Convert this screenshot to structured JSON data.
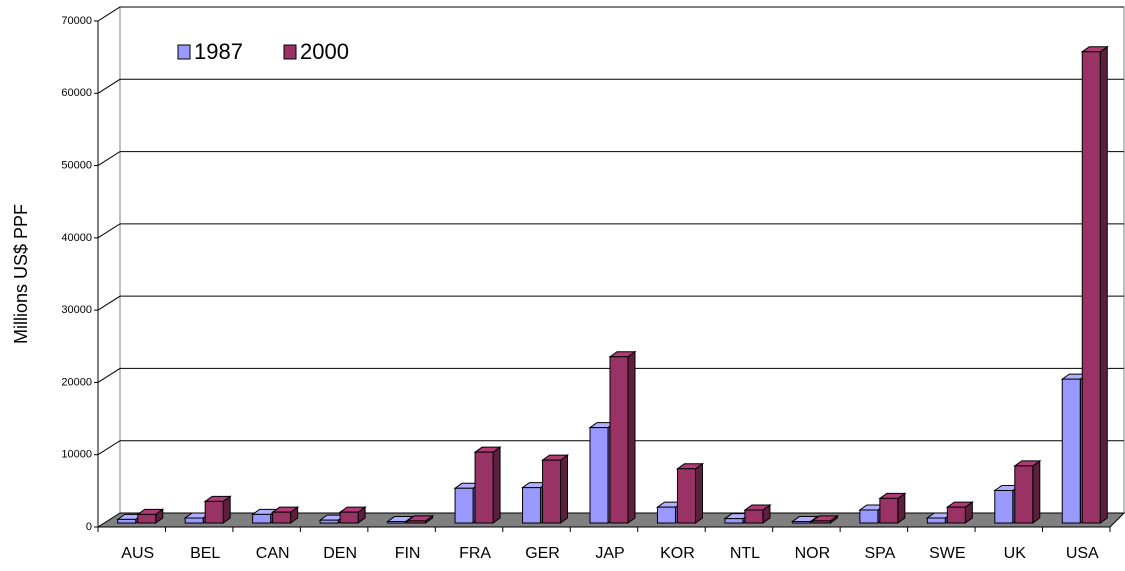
{
  "chart_data": {
    "type": "bar3d",
    "y_label": "Millions US$ PPF",
    "categories": [
      "AUS",
      "BEL",
      "CAN",
      "DEN",
      "FIN",
      "FRA",
      "GER",
      "JAP",
      "KOR",
      "NTL",
      "NOR",
      "SPA",
      "SWE",
      "UK",
      "USA"
    ],
    "series": [
      {
        "name": "1987",
        "color": "#9999ff",
        "values": [
          500,
          700,
          1200,
          400,
          200,
          4800,
          4900,
          13200,
          2200,
          600,
          200,
          1800,
          700,
          4500,
          19900
        ]
      },
      {
        "name": "2000",
        "color": "#993366",
        "values": [
          1200,
          3000,
          1500,
          1500,
          300,
          9800,
          8700,
          23000,
          7500,
          1800,
          300,
          3400,
          2200,
          7900,
          65200
        ]
      }
    ],
    "ylim": [
      0,
      70000
    ],
    "yticks": [
      0,
      10000,
      20000,
      30000,
      40000,
      50000,
      60000,
      70000
    ],
    "grid": true,
    "legend": "top-left"
  }
}
